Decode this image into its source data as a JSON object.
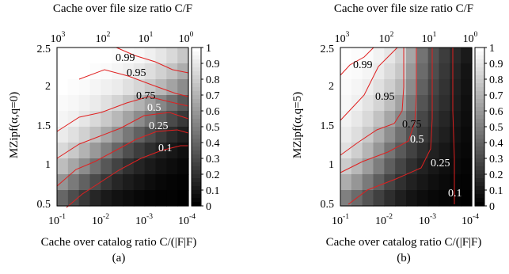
{
  "figure": {
    "panels": [
      {
        "id": "a",
        "caption": "(a)",
        "top_axis_label": "Cache over file size ratio C/F",
        "bottom_axis_label": "Cache over catalog ratio C/(|F|F)",
        "y_axis_label": "MZipf(α,q=0)",
        "contour_labels": [
          "0.99",
          "0.95",
          "0.75",
          "0.5",
          "0.25",
          "0.1"
        ]
      },
      {
        "id": "b",
        "caption": "(b)",
        "top_axis_label": "Cache over file size ratio C/F",
        "bottom_axis_label": "Cache over catalog ratio C/(|F|F)",
        "y_axis_label": "MZipf(α,q=5)",
        "contour_labels": [
          "0.99",
          "0.95",
          "0.75",
          "0.5",
          "0.25",
          "0.1"
        ]
      }
    ],
    "colorbar_ticks": [
      "1",
      "0.9",
      "0.8",
      "0.7",
      "0.6",
      "0.5",
      "0.4",
      "0.3",
      "0.2",
      "0.1",
      "0"
    ],
    "y_ticks": [
      "2.5",
      "2",
      "1.5",
      "1",
      "0.5"
    ],
    "x_bottom_ticks": [
      {
        "base": "10",
        "exp": "-1"
      },
      {
        "base": "10",
        "exp": "-2"
      },
      {
        "base": "10",
        "exp": "-3"
      },
      {
        "base": "10",
        "exp": "-4"
      }
    ],
    "x_top_ticks": [
      {
        "base": "10",
        "exp": "3"
      },
      {
        "base": "10",
        "exp": "2"
      },
      {
        "base": "10",
        "exp": "1"
      },
      {
        "base": "10",
        "exp": "0"
      }
    ]
  },
  "chart_data": [
    {
      "type": "heatmap",
      "panel": "a",
      "x_axis": {
        "label": "Cache over catalog ratio C/(|F|F)",
        "scale": "log",
        "range": [
          0.1,
          0.0001
        ]
      },
      "x2_axis": {
        "label": "Cache over file size ratio C/F",
        "scale": "log",
        "range": [
          1000,
          1
        ]
      },
      "y_axis": {
        "label": "MZipf(α,q=0)",
        "range": [
          0.5,
          2.5
        ]
      },
      "colorbar": {
        "range": [
          0,
          1
        ],
        "colors": "black-to-white"
      },
      "contour_levels": [
        0.99,
        0.95,
        0.75,
        0.5,
        0.25,
        0.1
      ],
      "grid": {
        "rows": 10,
        "cols": 12,
        "row_order": "top-to-bottom (y=2.5 down to 0.5)",
        "col_order": "left-to-right (x=1e-1 to 1e-4)",
        "values": [
          [
            1.0,
            1.0,
            1.0,
            1.0,
            1.0,
            0.99,
            0.98,
            0.97,
            0.94,
            0.9,
            0.85,
            0.78
          ],
          [
            1.0,
            1.0,
            1.0,
            0.99,
            0.98,
            0.96,
            0.94,
            0.91,
            0.87,
            0.82,
            0.76,
            0.68
          ],
          [
            1.0,
            0.99,
            0.98,
            0.96,
            0.94,
            0.92,
            0.88,
            0.84,
            0.79,
            0.72,
            0.64,
            0.55
          ],
          [
            0.98,
            0.97,
            0.95,
            0.92,
            0.88,
            0.83,
            0.77,
            0.7,
            0.62,
            0.53,
            0.44,
            0.35
          ],
          [
            0.96,
            0.94,
            0.9,
            0.85,
            0.79,
            0.72,
            0.64,
            0.55,
            0.46,
            0.37,
            0.29,
            0.22
          ],
          [
            0.92,
            0.88,
            0.82,
            0.75,
            0.66,
            0.57,
            0.47,
            0.38,
            0.3,
            0.23,
            0.17,
            0.12
          ],
          [
            0.85,
            0.79,
            0.7,
            0.6,
            0.5,
            0.4,
            0.31,
            0.24,
            0.18,
            0.13,
            0.09,
            0.06
          ],
          [
            0.74,
            0.65,
            0.55,
            0.44,
            0.34,
            0.26,
            0.19,
            0.14,
            0.1,
            0.07,
            0.05,
            0.03
          ],
          [
            0.58,
            0.48,
            0.38,
            0.29,
            0.21,
            0.15,
            0.11,
            0.08,
            0.05,
            0.03,
            0.02,
            0.01
          ],
          [
            0.4,
            0.3,
            0.22,
            0.15,
            0.1,
            0.07,
            0.05,
            0.03,
            0.02,
            0.01,
            0.01,
            0.0
          ]
        ]
      }
    },
    {
      "type": "heatmap",
      "panel": "b",
      "x_axis": {
        "label": "Cache over catalog ratio C/(|F|F)",
        "scale": "log",
        "range": [
          0.1,
          0.0001
        ]
      },
      "x2_axis": {
        "label": "Cache over file size ratio C/F",
        "scale": "log",
        "range": [
          1000,
          1
        ]
      },
      "y_axis": {
        "label": "MZipf(α,q=5)",
        "range": [
          0.5,
          2.5
        ]
      },
      "colorbar": {
        "range": [
          0,
          1
        ],
        "colors": "black-to-white"
      },
      "contour_levels": [
        0.99,
        0.95,
        0.75,
        0.5,
        0.25,
        0.1
      ],
      "grid": {
        "rows": 10,
        "cols": 12,
        "row_order": "top-to-bottom (y=2.5 down to 0.5)",
        "col_order": "left-to-right (x=1e-1 to 1e-4)",
        "values": [
          [
            1.0,
            0.99,
            0.98,
            0.95,
            0.9,
            0.82,
            0.65,
            0.45,
            0.32,
            0.24,
            0.16,
            0.1
          ],
          [
            0.99,
            0.98,
            0.96,
            0.92,
            0.86,
            0.78,
            0.6,
            0.42,
            0.3,
            0.22,
            0.14,
            0.08
          ],
          [
            0.98,
            0.96,
            0.93,
            0.88,
            0.81,
            0.72,
            0.55,
            0.38,
            0.27,
            0.2,
            0.12,
            0.07
          ],
          [
            0.97,
            0.94,
            0.89,
            0.83,
            0.74,
            0.63,
            0.48,
            0.33,
            0.24,
            0.18,
            0.11,
            0.06
          ],
          [
            0.95,
            0.91,
            0.85,
            0.76,
            0.65,
            0.53,
            0.4,
            0.28,
            0.2,
            0.15,
            0.09,
            0.05
          ],
          [
            0.92,
            0.87,
            0.79,
            0.68,
            0.56,
            0.44,
            0.32,
            0.23,
            0.17,
            0.12,
            0.07,
            0.04
          ],
          [
            0.88,
            0.81,
            0.71,
            0.59,
            0.46,
            0.35,
            0.26,
            0.18,
            0.13,
            0.09,
            0.05,
            0.03
          ],
          [
            0.8,
            0.72,
            0.61,
            0.49,
            0.37,
            0.27,
            0.19,
            0.13,
            0.09,
            0.06,
            0.04,
            0.02
          ],
          [
            0.68,
            0.59,
            0.48,
            0.37,
            0.27,
            0.19,
            0.13,
            0.09,
            0.06,
            0.04,
            0.02,
            0.01
          ],
          [
            0.5,
            0.42,
            0.33,
            0.25,
            0.18,
            0.12,
            0.08,
            0.05,
            0.03,
            0.02,
            0.01,
            0.0
          ]
        ]
      }
    }
  ]
}
